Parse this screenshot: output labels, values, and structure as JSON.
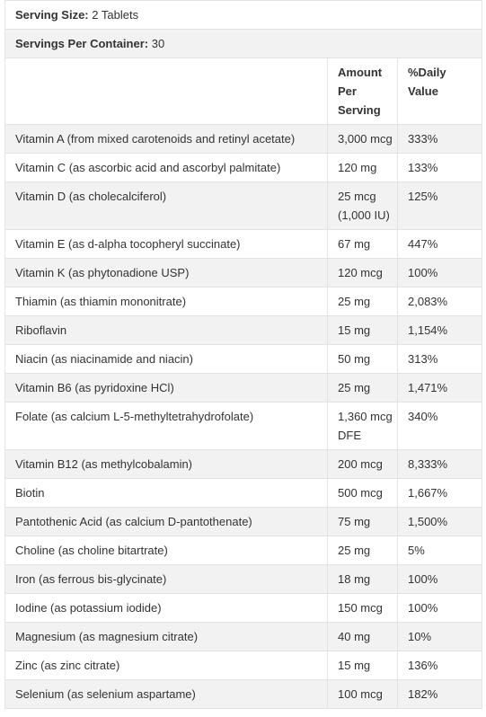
{
  "serving_size": {
    "label": "Serving Size:",
    "value": "2 Tablets"
  },
  "servings_per_container": {
    "label": "Servings Per Container:",
    "value": "30"
  },
  "header": {
    "amount": [
      "Amount",
      "Per",
      "Serving"
    ],
    "daily_value": [
      "%Daily",
      "Value"
    ]
  },
  "rows": [
    {
      "name": "Vitamin A (from mixed carotenoids and retinyl acetate)",
      "amount": [
        "3,000 mcg"
      ],
      "dv": "333%"
    },
    {
      "name": "Vitamin C (as ascorbic acid and ascorbyl palmitate)",
      "amount": [
        "120 mg"
      ],
      "dv": "133%"
    },
    {
      "name": "Vitamin D (as cholecalciferol)",
      "amount": [
        "25 mcg",
        "(1,000 IU)"
      ],
      "dv": "125%"
    },
    {
      "name": "Vitamin E (as d-alpha tocopheryl succinate)",
      "amount": [
        "67 mg"
      ],
      "dv": "447%"
    },
    {
      "name": "Vitamin K (as phytonadione USP)",
      "amount": [
        "120 mcg"
      ],
      "dv": "100%"
    },
    {
      "name": "Thiamin (as thiamin mononitrate)",
      "amount": [
        "25 mg"
      ],
      "dv": "2,083%"
    },
    {
      "name": "Riboflavin",
      "amount": [
        "15 mg"
      ],
      "dv": "1,154%"
    },
    {
      "name": "Niacin (as niacinamide and niacin)",
      "amount": [
        "50 mg"
      ],
      "dv": "313%"
    },
    {
      "name": "Vitamin B6 (as pyridoxine HCl)",
      "amount": [
        "25 mg"
      ],
      "dv": "1,471%"
    },
    {
      "name": "Folate (as calcium L-5-methyltetrahydrofolate)",
      "amount": [
        "1,360 mcg",
        "DFE"
      ],
      "dv": "340%"
    },
    {
      "name": "Vitamin B12 (as methylcobalamin)",
      "amount": [
        "200 mcg"
      ],
      "dv": "8,333%"
    },
    {
      "name": "Biotin",
      "amount": [
        "500 mcg"
      ],
      "dv": "1,667%"
    },
    {
      "name": "Pantothenic Acid (as calcium D-pantothenate)",
      "amount": [
        "75 mg"
      ],
      "dv": "1,500%"
    },
    {
      "name": "Choline (as choline bitartrate)",
      "amount": [
        "25 mg"
      ],
      "dv": "5%"
    },
    {
      "name": "Iron (as ferrous bis-glycinate)",
      "amount": [
        "18 mg"
      ],
      "dv": "100%"
    },
    {
      "name": "Iodine (as potassium iodide)",
      "amount": [
        "150 mcg"
      ],
      "dv": "100%"
    },
    {
      "name": "Magnesium (as magnesium citrate)",
      "amount": [
        "40 mg"
      ],
      "dv": "10%"
    },
    {
      "name": "Zinc (as zinc citrate)",
      "amount": [
        "15 mg"
      ],
      "dv": "136%"
    },
    {
      "name": "Selenium (as selenium aspartame)",
      "amount": [
        "100 mcg"
      ],
      "dv": "182%"
    }
  ]
}
